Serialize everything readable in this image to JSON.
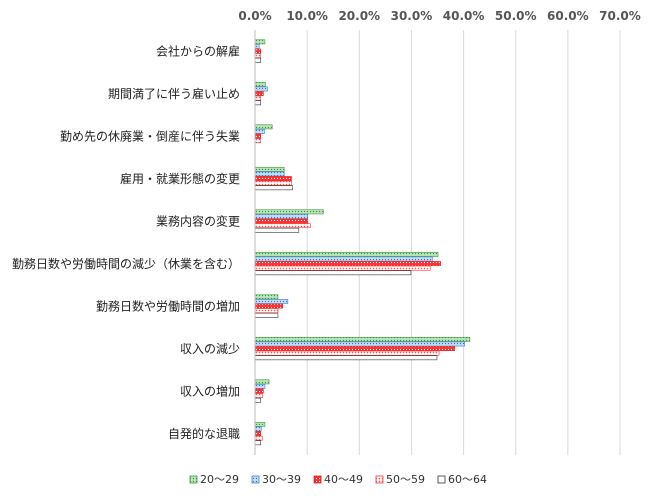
{
  "chart_data": {
    "type": "bar",
    "orientation": "horizontal",
    "categories": [
      "会社からの解雇",
      "期間満了に伴う雇い止め",
      "勤め先の休廃業・倒産に伴う失業",
      "雇用・就業形態の変更",
      "業務内容の変更",
      "勤務日数や労働時間の減少（休業を含む）",
      "勤務日数や労働時間の増加",
      "収入の減少",
      "収入の増加",
      "自発的な退職"
    ],
    "series": [
      {
        "name": "20～29",
        "color": "#8fd08f",
        "values": [
          1.9,
          2.0,
          3.3,
          5.6,
          13.1,
          35.1,
          4.4,
          41.2,
          2.7,
          1.9
        ]
      },
      {
        "name": "30～39",
        "color": "#9fc5f0",
        "values": [
          0.8,
          2.4,
          1.8,
          5.6,
          10.1,
          34.0,
          6.3,
          40.2,
          1.9,
          1.2
        ]
      },
      {
        "name": "40～49",
        "color": "#ff4040",
        "values": [
          1.1,
          1.6,
          1.1,
          7.0,
          10.1,
          35.6,
          5.3,
          38.3,
          1.6,
          1.1
        ]
      },
      {
        "name": "50～59",
        "color": "#ff9090",
        "values": [
          1.1,
          1.1,
          1.1,
          7.0,
          10.6,
          33.6,
          4.4,
          35.3,
          1.4,
          1.4
        ]
      },
      {
        "name": "60～64",
        "color": "#ffffff",
        "values": [
          1.1,
          1.1,
          0.0,
          7.2,
          8.4,
          29.9,
          4.4,
          34.9,
          1.1,
          1.1
        ]
      }
    ],
    "x_ticks": [
      "0.0%",
      "10.0%",
      "20.0%",
      "30.0%",
      "40.0%",
      "50.0%",
      "60.0%",
      "70.0%"
    ],
    "xlim": [
      0,
      70
    ],
    "grid": true,
    "legend_position": "bottom"
  }
}
